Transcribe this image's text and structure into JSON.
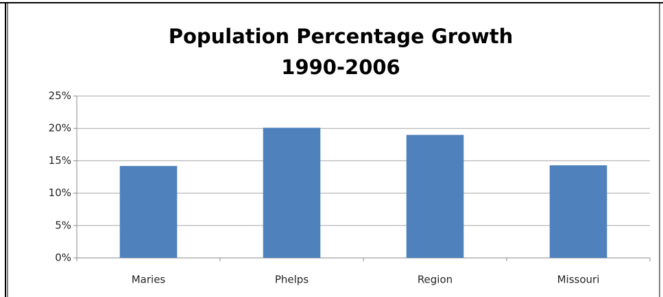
{
  "chart_data": {
    "type": "bar",
    "title": [
      "Population Percentage Growth",
      "1990-2006"
    ],
    "categories": [
      "Maries",
      "Phelps",
      "Region",
      "Missouri"
    ],
    "values": [
      14.2,
      20.1,
      19.0,
      14.3
    ],
    "color": "#4f81bd",
    "ylim": [
      0,
      25
    ],
    "yticks": [
      {
        "value": 0,
        "label": "0%"
      },
      {
        "value": 5,
        "label": "5%"
      },
      {
        "value": 10,
        "label": "10%"
      },
      {
        "value": 15,
        "label": "15%"
      },
      {
        "value": 20,
        "label": "20%"
      },
      {
        "value": 25,
        "label": "25%"
      }
    ],
    "grid": true
  }
}
